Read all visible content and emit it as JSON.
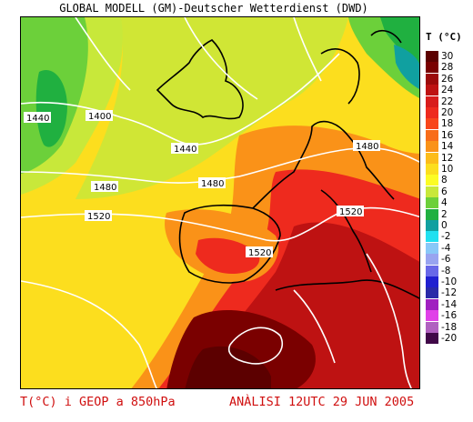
{
  "header": {
    "title": "GLOBAL MODELL (GM)-Deutscher Wetterdienst (DWD)"
  },
  "legend": {
    "title": "T (°C)",
    "entries": [
      {
        "label": "30",
        "color": "#5c0000"
      },
      {
        "label": "28",
        "color": "#7a0000"
      },
      {
        "label": "26",
        "color": "#9c0a0a"
      },
      {
        "label": "24",
        "color": "#be1212"
      },
      {
        "label": "22",
        "color": "#d81c1c"
      },
      {
        "label": "20",
        "color": "#ee2a1e"
      },
      {
        "label": "18",
        "color": "#f8461c"
      },
      {
        "label": "16",
        "color": "#f86c1a"
      },
      {
        "label": "14",
        "color": "#fa9218"
      },
      {
        "label": "12",
        "color": "#fcbc1a"
      },
      {
        "label": "10",
        "color": "#fcde1e"
      },
      {
        "label": "8",
        "color": "#fcfc24"
      },
      {
        "label": "6",
        "color": "#c8e83a"
      },
      {
        "label": "4",
        "color": "#6cd03a"
      },
      {
        "label": "2",
        "color": "#20b040"
      },
      {
        "label": "0",
        "color": "#10a0a0"
      },
      {
        "label": "-2",
        "color": "#20e0f0"
      },
      {
        "label": "-4",
        "color": "#88c8f8"
      },
      {
        "label": "-6",
        "color": "#98a4f0"
      },
      {
        "label": "-8",
        "color": "#6868e8"
      },
      {
        "label": "-10",
        "color": "#2020d0"
      },
      {
        "label": "-12",
        "color": "#2a2aa8"
      },
      {
        "label": "-14",
        "color": "#a020c0"
      },
      {
        "label": "-16",
        "color": "#e040e8"
      },
      {
        "label": "-18",
        "color": "#b060c0"
      },
      {
        "label": "-20",
        "color": "#400848"
      }
    ]
  },
  "contours": {
    "labels": [
      "1400",
      "1440",
      "1440",
      "1480",
      "1480",
      "1480",
      "1520",
      "1520",
      "1520"
    ]
  },
  "footer": {
    "left": "T(°C) i GEOP a 850hPa",
    "right": "ANÀLISI 12UTC 29 JUN 2005"
  }
}
